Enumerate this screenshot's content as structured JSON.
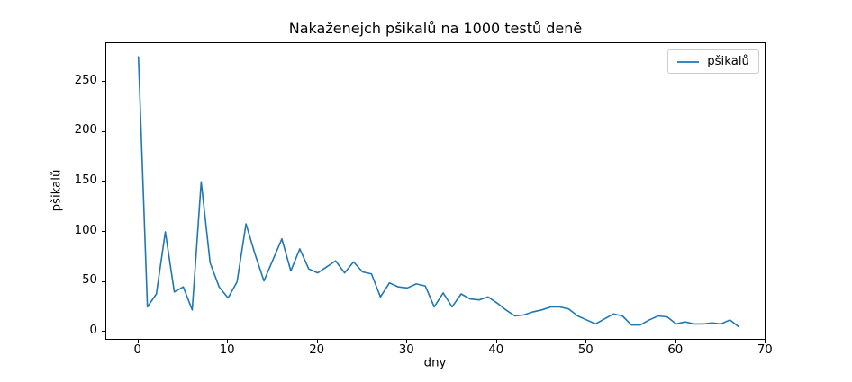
{
  "chart_data": {
    "type": "line",
    "title": "Nakaženejch pšikalů na 1000 testů deně",
    "xlabel": "dny",
    "ylabel": "pšikalů",
    "legend_position": "upper right",
    "grid": false,
    "background_color": "#ffffff",
    "xlim": [
      -3.59,
      70.07
    ],
    "ylim": [
      -8.7,
      288.6
    ],
    "xticks": [
      0,
      10,
      20,
      30,
      40,
      50,
      60,
      70
    ],
    "yticks": [
      0,
      50,
      100,
      150,
      200,
      250
    ],
    "x": [
      0,
      1,
      2,
      3,
      4,
      5,
      6,
      7,
      8,
      9,
      10,
      11,
      12,
      13,
      14,
      15,
      16,
      17,
      18,
      19,
      20,
      21,
      22,
      23,
      24,
      25,
      26,
      27,
      28,
      29,
      30,
      31,
      32,
      33,
      34,
      35,
      36,
      37,
      38,
      39,
      40,
      41,
      42,
      43,
      44,
      45,
      46,
      47,
      48,
      49,
      50,
      51,
      52,
      53,
      54,
      55,
      56,
      57,
      58,
      59,
      60,
      61,
      62,
      63,
      64,
      65,
      66,
      67
    ],
    "series": [
      {
        "name": "pšikalů",
        "color": "#1f77b4",
        "values": [
          275,
          25,
          38,
          100,
          40,
          45,
          22,
          150,
          69,
          45,
          34,
          50,
          108,
          78,
          51,
          72,
          93,
          61,
          83,
          63,
          59,
          65,
          71,
          59,
          70,
          60,
          58,
          35,
          49,
          45,
          44,
          48,
          46,
          25,
          39,
          25,
          38,
          33,
          32,
          35,
          29,
          22,
          16,
          17,
          20,
          22,
          25,
          25,
          23,
          16,
          12,
          8,
          13,
          18,
          16,
          7,
          7,
          12,
          16,
          15,
          8,
          10,
          8,
          8,
          9,
          8,
          12,
          5
        ]
      }
    ],
    "legend": [
      {
        "label": "pšikalů",
        "color": "#1f77b4"
      }
    ]
  }
}
